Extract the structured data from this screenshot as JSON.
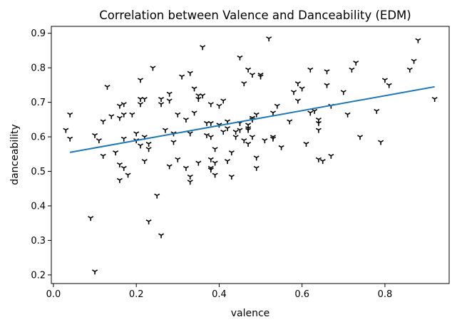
{
  "chart_data": {
    "type": "scatter",
    "title": "Correlation between Valence and Danceability (EDM)",
    "xlabel": "valence",
    "ylabel": "danceability",
    "xlim": [
      -0.005,
      0.955
    ],
    "ylim": [
      0.175,
      0.92
    ],
    "xticks": [
      0.0,
      0.2,
      0.4,
      0.6,
      0.8
    ],
    "xtick_labels": [
      "0.0",
      "0.2",
      "0.4",
      "0.6",
      "0.8"
    ],
    "yticks": [
      0.2,
      0.3,
      0.4,
      0.5,
      0.6,
      0.7,
      0.8,
      0.9
    ],
    "ytick_labels": [
      "0.2",
      "0.3",
      "0.4",
      "0.5",
      "0.6",
      "0.7",
      "0.8",
      "0.9"
    ],
    "grid": false,
    "marker": "tri_down",
    "colors": {
      "points": "#000000",
      "trend": "#1f77b4"
    },
    "trend_line": {
      "x": [
        0.04,
        0.92
      ],
      "y": [
        0.555,
        0.745
      ]
    },
    "points": [
      [
        0.03,
        0.62
      ],
      [
        0.04,
        0.665
      ],
      [
        0.04,
        0.595
      ],
      [
        0.1,
        0.605
      ],
      [
        0.11,
        0.59
      ],
      [
        0.12,
        0.545
      ],
      [
        0.12,
        0.645
      ],
      [
        0.13,
        0.745
      ],
      [
        0.09,
        0.365
      ],
      [
        0.1,
        0.21
      ],
      [
        0.14,
        0.66
      ],
      [
        0.15,
        0.555
      ],
      [
        0.16,
        0.69
      ],
      [
        0.16,
        0.655
      ],
      [
        0.16,
        0.52
      ],
      [
        0.16,
        0.475
      ],
      [
        0.17,
        0.695
      ],
      [
        0.17,
        0.665
      ],
      [
        0.17,
        0.595
      ],
      [
        0.17,
        0.51
      ],
      [
        0.18,
        0.49
      ],
      [
        0.19,
        0.665
      ],
      [
        0.2,
        0.59
      ],
      [
        0.2,
        0.61
      ],
      [
        0.21,
        0.71
      ],
      [
        0.21,
        0.695
      ],
      [
        0.21,
        0.765
      ],
      [
        0.21,
        0.575
      ],
      [
        0.22,
        0.71
      ],
      [
        0.22,
        0.6
      ],
      [
        0.22,
        0.53
      ],
      [
        0.23,
        0.58
      ],
      [
        0.23,
        0.565
      ],
      [
        0.23,
        0.355
      ],
      [
        0.24,
        0.8
      ],
      [
        0.25,
        0.43
      ],
      [
        0.26,
        0.315
      ],
      [
        0.26,
        0.71
      ],
      [
        0.26,
        0.695
      ],
      [
        0.27,
        0.62
      ],
      [
        0.28,
        0.725
      ],
      [
        0.28,
        0.705
      ],
      [
        0.28,
        0.515
      ],
      [
        0.29,
        0.61
      ],
      [
        0.29,
        0.585
      ],
      [
        0.3,
        0.665
      ],
      [
        0.3,
        0.535
      ],
      [
        0.31,
        0.775
      ],
      [
        0.32,
        0.65
      ],
      [
        0.32,
        0.51
      ],
      [
        0.33,
        0.61
      ],
      [
        0.33,
        0.485
      ],
      [
        0.33,
        0.47
      ],
      [
        0.33,
        0.785
      ],
      [
        0.34,
        0.74
      ],
      [
        0.34,
        0.67
      ],
      [
        0.35,
        0.72
      ],
      [
        0.35,
        0.71
      ],
      [
        0.35,
        0.525
      ],
      [
        0.36,
        0.86
      ],
      [
        0.36,
        0.72
      ],
      [
        0.37,
        0.64
      ],
      [
        0.37,
        0.605
      ],
      [
        0.38,
        0.64
      ],
      [
        0.38,
        0.695
      ],
      [
        0.38,
        0.6
      ],
      [
        0.38,
        0.535
      ],
      [
        0.38,
        0.51
      ],
      [
        0.38,
        0.505
      ],
      [
        0.39,
        0.565
      ],
      [
        0.39,
        0.525
      ],
      [
        0.39,
        0.49
      ],
      [
        0.4,
        0.69
      ],
      [
        0.4,
        0.635
      ],
      [
        0.41,
        0.705
      ],
      [
        0.41,
        0.615
      ],
      [
        0.42,
        0.645
      ],
      [
        0.42,
        0.625
      ],
      [
        0.42,
        0.53
      ],
      [
        0.43,
        0.555
      ],
      [
        0.43,
        0.485
      ],
      [
        0.44,
        0.615
      ],
      [
        0.44,
        0.6
      ],
      [
        0.45,
        0.83
      ],
      [
        0.45,
        0.64
      ],
      [
        0.45,
        0.62
      ],
      [
        0.46,
        0.59
      ],
      [
        0.46,
        0.755
      ],
      [
        0.47,
        0.795
      ],
      [
        0.47,
        0.635
      ],
      [
        0.47,
        0.62
      ],
      [
        0.47,
        0.58
      ],
      [
        0.47,
        0.625
      ],
      [
        0.48,
        0.78
      ],
      [
        0.48,
        0.655
      ],
      [
        0.48,
        0.65
      ],
      [
        0.48,
        0.6
      ],
      [
        0.49,
        0.665
      ],
      [
        0.49,
        0.51
      ],
      [
        0.49,
        0.54
      ],
      [
        0.5,
        0.78
      ],
      [
        0.5,
        0.775
      ],
      [
        0.51,
        0.59
      ],
      [
        0.52,
        0.885
      ],
      [
        0.53,
        0.67
      ],
      [
        0.53,
        0.6
      ],
      [
        0.53,
        0.595
      ],
      [
        0.54,
        0.69
      ],
      [
        0.55,
        0.57
      ],
      [
        0.57,
        0.645
      ],
      [
        0.58,
        0.73
      ],
      [
        0.59,
        0.755
      ],
      [
        0.59,
        0.705
      ],
      [
        0.6,
        0.74
      ],
      [
        0.61,
        0.58
      ],
      [
        0.62,
        0.795
      ],
      [
        0.62,
        0.67
      ],
      [
        0.63,
        0.675
      ],
      [
        0.64,
        0.64
      ],
      [
        0.64,
        0.62
      ],
      [
        0.64,
        0.65
      ],
      [
        0.64,
        0.535
      ],
      [
        0.65,
        0.53
      ],
      [
        0.66,
        0.75
      ],
      [
        0.66,
        0.79
      ],
      [
        0.67,
        0.69
      ],
      [
        0.67,
        0.545
      ],
      [
        0.7,
        0.73
      ],
      [
        0.71,
        0.665
      ],
      [
        0.72,
        0.795
      ],
      [
        0.73,
        0.815
      ],
      [
        0.74,
        0.6
      ],
      [
        0.78,
        0.675
      ],
      [
        0.79,
        0.585
      ],
      [
        0.8,
        0.765
      ],
      [
        0.81,
        0.75
      ],
      [
        0.86,
        0.795
      ],
      [
        0.87,
        0.82
      ],
      [
        0.88,
        0.88
      ],
      [
        0.92,
        0.71
      ]
    ]
  }
}
